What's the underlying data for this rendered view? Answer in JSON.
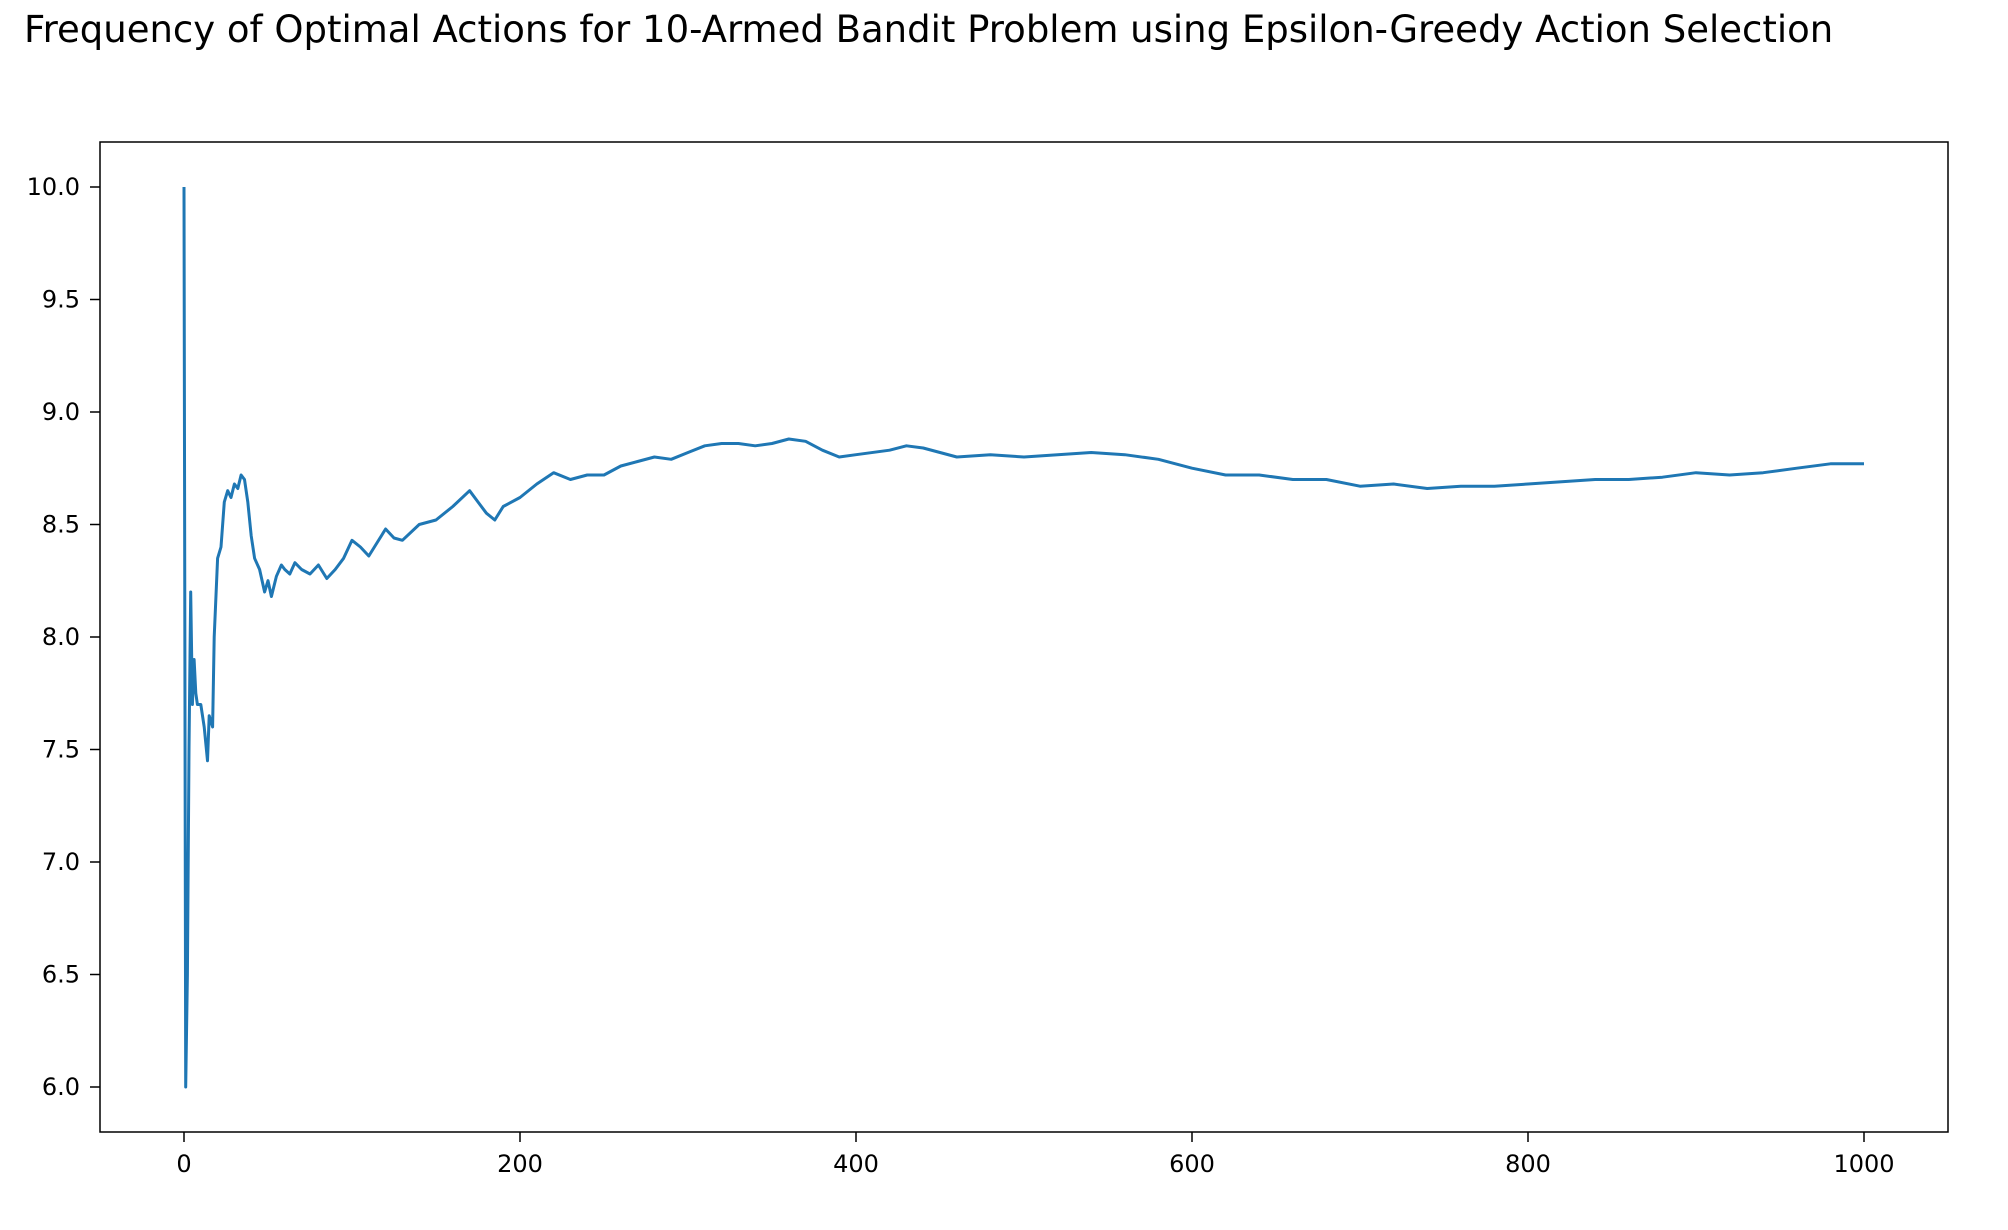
{
  "chart_data": {
    "type": "line",
    "title": "Frequency of Optimal Actions for 10-Armed Bandit Problem using Epsilon-Greedy Action Selection",
    "xlabel": "",
    "ylabel": "",
    "xlim": [
      -50,
      1050
    ],
    "ylim": [
      5.8,
      10.2
    ],
    "x_ticks": [
      0,
      200,
      400,
      600,
      800,
      1000
    ],
    "x_tick_labels": [
      "0",
      "200",
      "400",
      "600",
      "800",
      "1000"
    ],
    "y_ticks": [
      6.0,
      6.5,
      7.0,
      7.5,
      8.0,
      8.5,
      9.0,
      9.5,
      10.0
    ],
    "y_tick_labels": [
      "6.0",
      "6.5",
      "7.0",
      "7.5",
      "8.0",
      "8.5",
      "9.0",
      "9.5",
      "10.0"
    ],
    "grid": false,
    "line_color": "#1f77b4",
    "series": [
      {
        "x": [
          0,
          1,
          2,
          3,
          4,
          5,
          6,
          7,
          8,
          10,
          12,
          14,
          15,
          17,
          18,
          20,
          22,
          24,
          26,
          28,
          30,
          32,
          34,
          36,
          38,
          40,
          42,
          45,
          48,
          50,
          52,
          55,
          58,
          60,
          63,
          66,
          70,
          75,
          80,
          85,
          90,
          95,
          100,
          105,
          110,
          115,
          120,
          125,
          130,
          140,
          150,
          160,
          170,
          175,
          180,
          185,
          190,
          200,
          210,
          220,
          230,
          240,
          250,
          260,
          270,
          280,
          290,
          300,
          310,
          320,
          330,
          340,
          350,
          360,
          370,
          380,
          390,
          400,
          420,
          430,
          440,
          460,
          480,
          500,
          520,
          540,
          560,
          580,
          600,
          620,
          640,
          660,
          680,
          700,
          720,
          740,
          760,
          780,
          800,
          820,
          840,
          860,
          880,
          900,
          920,
          940,
          960,
          980,
          1000
        ],
        "y": [
          10.0,
          6.0,
          6.5,
          7.5,
          8.2,
          7.7,
          7.9,
          7.75,
          7.7,
          7.7,
          7.6,
          7.45,
          7.65,
          7.6,
          8.0,
          8.35,
          8.4,
          8.6,
          8.65,
          8.62,
          8.68,
          8.66,
          8.72,
          8.7,
          8.6,
          8.45,
          8.35,
          8.3,
          8.2,
          8.25,
          8.18,
          8.27,
          8.32,
          8.3,
          8.28,
          8.33,
          8.3,
          8.28,
          8.32,
          8.26,
          8.3,
          8.35,
          8.43,
          8.4,
          8.36,
          8.42,
          8.48,
          8.44,
          8.43,
          8.5,
          8.52,
          8.58,
          8.65,
          8.6,
          8.55,
          8.52,
          8.58,
          8.62,
          8.68,
          8.73,
          8.7,
          8.72,
          8.72,
          8.76,
          8.78,
          8.8,
          8.79,
          8.82,
          8.85,
          8.86,
          8.86,
          8.85,
          8.86,
          8.88,
          8.87,
          8.83,
          8.8,
          8.81,
          8.83,
          8.85,
          8.84,
          8.8,
          8.81,
          8.8,
          8.81,
          8.82,
          8.81,
          8.79,
          8.75,
          8.72,
          8.72,
          8.7,
          8.7,
          8.67,
          8.68,
          8.66,
          8.67,
          8.67,
          8.68,
          8.69,
          8.7,
          8.7,
          8.71,
          8.73,
          8.72,
          8.73,
          8.75,
          8.77,
          8.77
        ]
      }
    ]
  }
}
